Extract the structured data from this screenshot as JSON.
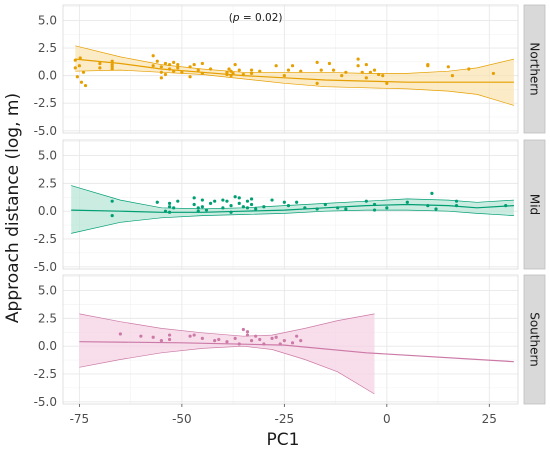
{
  "chart_data": {
    "type": "scatter",
    "xlabel": "PC1",
    "ylabel": "Approach distance (log, m)",
    "xlim": [
      -79,
      32
    ],
    "ylim": [
      -5.2,
      6.4
    ],
    "x_ticks": [
      -75,
      -50,
      -25,
      0,
      25
    ],
    "x_tick_labels": [
      "-75",
      "-50",
      "-25",
      "0",
      "25"
    ],
    "y_ticks": [
      -5,
      -2.5,
      0,
      2.5,
      5
    ],
    "y_tick_labels": [
      "-5.0",
      "-2.5",
      "0.0",
      "2.5",
      "5.0"
    ],
    "grid": true,
    "facet_layout": "rows, strip labels on right",
    "panels": [
      {
        "label": "Northern",
        "color": "#E69F00",
        "fill": "#F9E4B4",
        "annotation": {
          "text_before": "(",
          "italic": "p",
          "text_after": " = 0.02)",
          "x": -32,
          "y": 5.3
        },
        "points": [
          [
            -76,
            1.4
          ],
          [
            -76,
            0.7
          ],
          [
            -75.5,
            -0.1
          ],
          [
            -75,
            0.9
          ],
          [
            -74.8,
            1.6
          ],
          [
            -74.5,
            -0.6
          ],
          [
            -74,
            0.3
          ],
          [
            -73.5,
            -0.9
          ],
          [
            -70,
            1.1
          ],
          [
            -70,
            0.7
          ],
          [
            -67,
            0.8
          ],
          [
            -67,
            1.3
          ],
          [
            -67,
            0.6
          ],
          [
            -67,
            1.0
          ],
          [
            -57,
            1.8
          ],
          [
            -57,
            0.9
          ],
          [
            -56,
            1.3
          ],
          [
            -55,
            0.3
          ],
          [
            -55,
            -0.2
          ],
          [
            -55,
            0.8
          ],
          [
            -54,
            1.1
          ],
          [
            -54,
            0.1
          ],
          [
            -53,
            0.6
          ],
          [
            -53,
            1.0
          ],
          [
            -52,
            0.4
          ],
          [
            -52,
            1.2
          ],
          [
            -51,
            0.7
          ],
          [
            -51,
            1.0
          ],
          [
            -50,
            0.3
          ],
          [
            -48,
            0.8
          ],
          [
            -48,
            -0.1
          ],
          [
            -47,
            1.0
          ],
          [
            -46,
            0.5
          ],
          [
            -45,
            1.1
          ],
          [
            -45,
            0.2
          ],
          [
            -43,
            0.6
          ],
          [
            -39,
            0.3
          ],
          [
            -39,
            0.1
          ],
          [
            -38.5,
            0.6
          ],
          [
            -38,
            0.0
          ],
          [
            -38,
            0.4
          ],
          [
            -37.5,
            0.2
          ],
          [
            -37,
            1.0
          ],
          [
            -36,
            0.5
          ],
          [
            -35,
            0.1
          ],
          [
            -33,
            0.5
          ],
          [
            -33,
            0.2
          ],
          [
            -31,
            0.4
          ],
          [
            -27,
            0.9
          ],
          [
            -25,
            0.0
          ],
          [
            -24,
            0.5
          ],
          [
            -23,
            0.9
          ],
          [
            -21,
            0.4
          ],
          [
            -17,
            1.2
          ],
          [
            -17,
            -0.7
          ],
          [
            -16,
            0.5
          ],
          [
            -14,
            1.1
          ],
          [
            -13,
            0.5
          ],
          [
            -11,
            0.0
          ],
          [
            -10,
            0.3
          ],
          [
            -7,
            1.5
          ],
          [
            -7,
            0.9
          ],
          [
            -6,
            0.3
          ],
          [
            -5,
            1.0
          ],
          [
            -4,
            0.3
          ],
          [
            -3,
            0.5
          ],
          [
            -2,
            0.1
          ],
          [
            -1,
            0.0
          ],
          [
            0,
            -0.7
          ],
          [
            -5,
            -0.2
          ],
          [
            10,
            1.0
          ],
          [
            10,
            0.9
          ],
          [
            15,
            0.8
          ],
          [
            16,
            0.0
          ],
          [
            20,
            0.6
          ],
          [
            26,
            0.2
          ]
        ],
        "fit": [
          [
            -76,
            1.5
          ],
          [
            -65,
            1.1
          ],
          [
            -55,
            0.6
          ],
          [
            -45,
            0.3
          ],
          [
            -35,
            0.0
          ],
          [
            -25,
            -0.2
          ],
          [
            -15,
            -0.4
          ],
          [
            -5,
            -0.5
          ],
          [
            5,
            -0.6
          ],
          [
            15,
            -0.6
          ],
          [
            22,
            -0.6
          ],
          [
            31,
            -0.6
          ]
        ],
        "lower": [
          [
            -76,
            0.4
          ],
          [
            -65,
            0.5
          ],
          [
            -55,
            0.3
          ],
          [
            -45,
            0.1
          ],
          [
            -35,
            -0.3
          ],
          [
            -25,
            -0.7
          ],
          [
            -15,
            -1.0
          ],
          [
            -5,
            -1.1
          ],
          [
            5,
            -1.2
          ],
          [
            15,
            -1.4
          ],
          [
            22,
            -1.7
          ],
          [
            31,
            -2.7
          ]
        ],
        "upper": [
          [
            -76,
            2.7
          ],
          [
            -65,
            1.7
          ],
          [
            -55,
            1.0
          ],
          [
            -45,
            0.6
          ],
          [
            -35,
            0.3
          ],
          [
            -25,
            0.3
          ],
          [
            -15,
            0.3
          ],
          [
            -5,
            0.2
          ],
          [
            5,
            0.2
          ],
          [
            15,
            0.4
          ],
          [
            22,
            0.7
          ],
          [
            31,
            1.5
          ]
        ]
      },
      {
        "label": "Mid",
        "color": "#009E73",
        "fill": "#B9E6D7",
        "annotation": null,
        "points": [
          [
            -67,
            0.9
          ],
          [
            -67,
            -0.4
          ],
          [
            -56,
            0.8
          ],
          [
            -54,
            0.0
          ],
          [
            -53,
            0.7
          ],
          [
            -53,
            0.4
          ],
          [
            -53,
            -0.1
          ],
          [
            -52,
            0.3
          ],
          [
            -51,
            0.9
          ],
          [
            -47,
            1.2
          ],
          [
            -47,
            0.6
          ],
          [
            -46,
            0.3
          ],
          [
            -46,
            0.0
          ],
          [
            -45,
            1.0
          ],
          [
            -45,
            0.4
          ],
          [
            -44,
            0.1
          ],
          [
            -43,
            0.7
          ],
          [
            -42,
            0.9
          ],
          [
            -40,
            1.0
          ],
          [
            -40,
            0.3
          ],
          [
            -39,
            0.9
          ],
          [
            -38,
            -0.1
          ],
          [
            -38,
            0.5
          ],
          [
            -37,
            1.3
          ],
          [
            -36,
            1.2
          ],
          [
            -36,
            0.7
          ],
          [
            -35,
            0.4
          ],
          [
            -34,
            0.9
          ],
          [
            -34,
            0.3
          ],
          [
            -33,
            1.1
          ],
          [
            -33,
            0.6
          ],
          [
            -32,
            0.2
          ],
          [
            -30,
            0.4
          ],
          [
            -28,
            1.0
          ],
          [
            -25,
            0.8
          ],
          [
            -24,
            0.5
          ],
          [
            -22,
            0.8
          ],
          [
            -20,
            0.3
          ],
          [
            -17,
            0.2
          ],
          [
            -15,
            0.6
          ],
          [
            -12,
            0.3
          ],
          [
            -10,
            0.2
          ],
          [
            -5,
            0.9
          ],
          [
            -3,
            0.6
          ],
          [
            -3,
            0.1
          ],
          [
            0,
            0.3
          ],
          [
            5,
            0.8
          ],
          [
            10,
            0.5
          ],
          [
            11,
            1.6
          ],
          [
            12,
            0.2
          ],
          [
            17,
            0.9
          ],
          [
            17,
            0.5
          ],
          [
            29,
            0.5
          ]
        ],
        "fit": [
          [
            -77,
            0.1
          ],
          [
            -65,
            0.0
          ],
          [
            -55,
            -0.1
          ],
          [
            -45,
            -0.1
          ],
          [
            -35,
            0.0
          ],
          [
            -25,
            0.1
          ],
          [
            -15,
            0.3
          ],
          [
            -5,
            0.5
          ],
          [
            5,
            0.6
          ],
          [
            15,
            0.5
          ],
          [
            22,
            0.3
          ],
          [
            31,
            0.5
          ]
        ],
        "lower": [
          [
            -77,
            -2.0
          ],
          [
            -65,
            -1.0
          ],
          [
            -55,
            -0.6
          ],
          [
            -45,
            -0.4
          ],
          [
            -35,
            -0.3
          ],
          [
            -25,
            -0.2
          ],
          [
            -15,
            0.0
          ],
          [
            -5,
            0.1
          ],
          [
            5,
            0.1
          ],
          [
            15,
            0.0
          ],
          [
            22,
            -0.2
          ],
          [
            31,
            -0.4
          ]
        ],
        "upper": [
          [
            -77,
            2.3
          ],
          [
            -65,
            1.0
          ],
          [
            -55,
            0.3
          ],
          [
            -45,
            0.2
          ],
          [
            -35,
            0.3
          ],
          [
            -25,
            0.5
          ],
          [
            -15,
            0.7
          ],
          [
            -5,
            0.9
          ],
          [
            5,
            1.1
          ],
          [
            15,
            1.0
          ],
          [
            22,
            0.8
          ],
          [
            31,
            1.0
          ]
        ]
      },
      {
        "label": "Southern",
        "color": "#CC79A7",
        "fill": "#F5D3E4",
        "annotation": null,
        "points": [
          [
            -65,
            1.1
          ],
          [
            -60,
            0.9
          ],
          [
            -57,
            0.8
          ],
          [
            -55,
            0.5
          ],
          [
            -53,
            1.0
          ],
          [
            -53,
            0.6
          ],
          [
            -48,
            0.9
          ],
          [
            -47,
            1.0
          ],
          [
            -45,
            0.7
          ],
          [
            -42,
            0.5
          ],
          [
            -41,
            0.6
          ],
          [
            -39,
            0.4
          ],
          [
            -37,
            0.7
          ],
          [
            -36,
            0.2
          ],
          [
            -35,
            1.5
          ],
          [
            -34,
            1.3
          ],
          [
            -34,
            1.0
          ],
          [
            -33,
            0.5
          ],
          [
            -32,
            0.9
          ],
          [
            -31,
            0.6
          ],
          [
            -30,
            0.2
          ],
          [
            -28,
            0.7
          ],
          [
            -27,
            0.8
          ],
          [
            -26,
            0.2
          ],
          [
            -25,
            0.5
          ],
          [
            -23,
            0.3
          ],
          [
            -22,
            0.9
          ],
          [
            -21,
            0.5
          ]
        ],
        "fit": [
          [
            -75,
            0.4
          ],
          [
            -50,
            0.3
          ],
          [
            -25,
            0.1
          ],
          [
            -5,
            -0.6
          ],
          [
            31,
            -1.4
          ]
        ],
        "lower": [
          [
            -75,
            -1.9
          ],
          [
            -65,
            -1.2
          ],
          [
            -55,
            -0.6
          ],
          [
            -45,
            -0.2
          ],
          [
            -35,
            0.0
          ],
          [
            -28,
            -0.3
          ],
          [
            -20,
            -1.2
          ],
          [
            -12,
            -2.3
          ],
          [
            -3,
            -4.3
          ]
        ],
        "upper": [
          [
            -75,
            2.9
          ],
          [
            -65,
            2.2
          ],
          [
            -55,
            1.6
          ],
          [
            -45,
            1.2
          ],
          [
            -35,
            0.9
          ],
          [
            -28,
            1.0
          ],
          [
            -20,
            1.6
          ],
          [
            -12,
            2.3
          ],
          [
            -3,
            2.9
          ]
        ]
      }
    ]
  }
}
